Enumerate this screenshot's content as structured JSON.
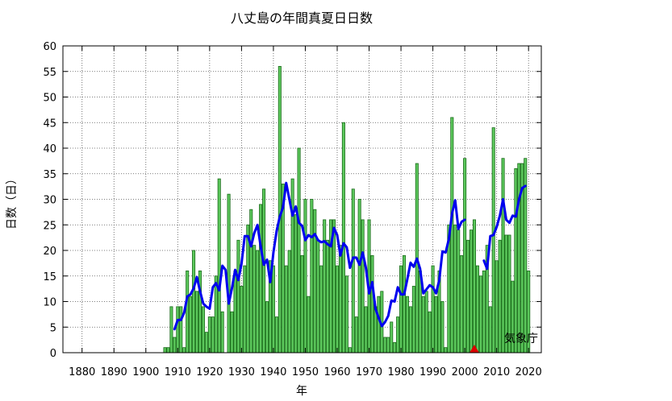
{
  "chart_data": {
    "type": "bar",
    "title": "八丈島の年間真夏日日数",
    "xlabel": "年",
    "ylabel": "日数（日）",
    "credit": "気象庁",
    "xlim": [
      1874,
      2024
    ],
    "ylim": [
      0,
      60
    ],
    "x_ticks": [
      1880,
      1890,
      1900,
      1910,
      1920,
      1930,
      1940,
      1950,
      1960,
      1970,
      1980,
      1990,
      2000,
      2010,
      2020
    ],
    "y_ticks": [
      0,
      5,
      10,
      15,
      20,
      25,
      30,
      35,
      40,
      45,
      50,
      55,
      60
    ],
    "grid": true,
    "colors": {
      "bar_fill": "#5cc85c",
      "bar_stroke": "#1a6b1a",
      "trend_line": "#0000ee",
      "marker": "#dd0000"
    },
    "series": [
      {
        "type": "bar",
        "x": [
          1906,
          1907,
          1908,
          1909,
          1910,
          1911,
          1912,
          1913,
          1914,
          1915,
          1916,
          1917,
          1918,
          1919,
          1920,
          1921,
          1922,
          1923,
          1924,
          1925,
          1926,
          1927,
          1928,
          1929,
          1930,
          1931,
          1932,
          1933,
          1934,
          1935,
          1936,
          1937,
          1938,
          1939,
          1940,
          1941,
          1942,
          1943,
          1944,
          1945,
          1946,
          1947,
          1948,
          1949,
          1950,
          1951,
          1952,
          1953,
          1954,
          1955,
          1956,
          1957,
          1958,
          1959,
          1960,
          1961,
          1962,
          1963,
          1964,
          1965,
          1966,
          1967,
          1968,
          1969,
          1970,
          1971,
          1972,
          1973,
          1974,
          1975,
          1976,
          1977,
          1978,
          1979,
          1980,
          1981,
          1982,
          1983,
          1984,
          1985,
          1986,
          1987,
          1988,
          1989,
          1990,
          1991,
          1992,
          1993,
          1994,
          1995,
          1996,
          1997,
          1998,
          1999,
          2000,
          2001,
          2002,
          2003,
          2004,
          2005,
          2006,
          2007,
          2008,
          2009,
          2010,
          2011,
          2012,
          2013,
          2014,
          2015,
          2016,
          2017,
          2018,
          2019,
          2020
        ],
        "values": [
          1,
          1,
          9,
          3,
          9,
          9,
          1,
          16,
          11,
          20,
          12,
          16,
          9,
          4,
          7,
          7,
          15,
          34,
          8,
          0,
          31,
          8,
          16,
          22,
          13,
          17,
          25,
          28,
          21,
          20,
          29,
          32,
          10,
          18,
          17,
          7,
          56,
          33,
          17,
          20,
          34,
          27,
          40,
          19,
          30,
          11,
          30,
          28,
          22,
          17,
          26,
          22,
          26,
          26,
          17,
          21,
          45,
          15,
          1,
          32,
          7,
          30,
          26,
          9,
          26,
          19,
          9,
          11,
          12,
          3,
          3,
          6,
          2,
          7,
          17,
          19,
          11,
          9,
          13,
          37,
          16,
          11,
          12,
          8,
          17,
          11,
          16,
          10,
          1,
          25,
          46,
          25,
          24,
          19,
          38,
          22,
          24,
          26,
          17,
          15,
          16,
          21,
          9,
          44,
          18,
          22,
          38,
          23,
          23,
          14,
          36,
          37,
          37,
          38,
          16
        ]
      },
      {
        "type": "line",
        "name": "",
        "x": [
          1909,
          1910,
          1911,
          1912,
          1913,
          1914,
          1915,
          1916,
          1917,
          1918,
          1919,
          1920,
          1921,
          1922,
          1923,
          1924,
          1925,
          1926,
          1927,
          1928,
          1929,
          1930,
          1931,
          1932,
          1933,
          1934,
          1935,
          1936,
          1937,
          1938,
          1939,
          1940,
          1941,
          1942,
          1943,
          1944,
          1945,
          1946,
          1947,
          1948,
          1949,
          1950,
          1951,
          1952,
          1953,
          1954,
          1955,
          1956,
          1957,
          1958,
          1959,
          1960,
          1961,
          1962,
          1963,
          1964,
          1965,
          1966,
          1967,
          1968,
          1969,
          1970,
          1971,
          1972,
          1973,
          1974,
          1975,
          1976,
          1977,
          1978,
          1979,
          1980,
          1981,
          1982,
          1983,
          1984,
          1985,
          1986,
          1987,
          1988,
          1989,
          1990,
          1991,
          1992,
          1993,
          1994,
          1995,
          1996,
          1997,
          1998,
          1999,
          2000
        ],
        "values": [
          4.6,
          6.4,
          6.4,
          7.8,
          11,
          11.4,
          12.6,
          14.8,
          12,
          9.6,
          9,
          8.6,
          12.8,
          13.6,
          12.2,
          17,
          16.2,
          9.6,
          12.6,
          16.2,
          14.2,
          17.4,
          22.8,
          22.8,
          20.8,
          23.4,
          25,
          20.8,
          17.2,
          18.2,
          13.8,
          19.6,
          23.8,
          26.6,
          28.4,
          33.2,
          30,
          26.8,
          28.6,
          25.4,
          24.8,
          22,
          23,
          22.6,
          23.2,
          22,
          21.6,
          21.8,
          21.2,
          20.8,
          24.4,
          23,
          19,
          21.4,
          20.6,
          16.6,
          18.6,
          18.6,
          17.2,
          19.6,
          16.6,
          11.6,
          13.8,
          8.6,
          6.8,
          5.2,
          6,
          7.2,
          10.2,
          10,
          12.8,
          11.4,
          11.4,
          14.4,
          17.6,
          16.8,
          18.4,
          16.4,
          11.6,
          12.4,
          13.2,
          12.8,
          11.6,
          14.2,
          19.8,
          19.6,
          22.2,
          27.2,
          29.8,
          24.2,
          25.6,
          26
        ]
      },
      {
        "type": "line",
        "name": "",
        "x": [
          2006,
          2007,
          2008,
          2009,
          2010,
          2011,
          2012,
          2013,
          2014,
          2015,
          2016,
          2017,
          2018,
          2019
        ],
        "values": [
          18,
          16.4,
          22.8,
          23,
          24.6,
          26.8,
          30,
          26,
          25.4,
          26.8,
          26.6,
          30,
          32.2,
          32.6
        ]
      }
    ],
    "annotations": [
      {
        "type": "triangle-marker",
        "x": 2003,
        "y": 0
      }
    ]
  }
}
